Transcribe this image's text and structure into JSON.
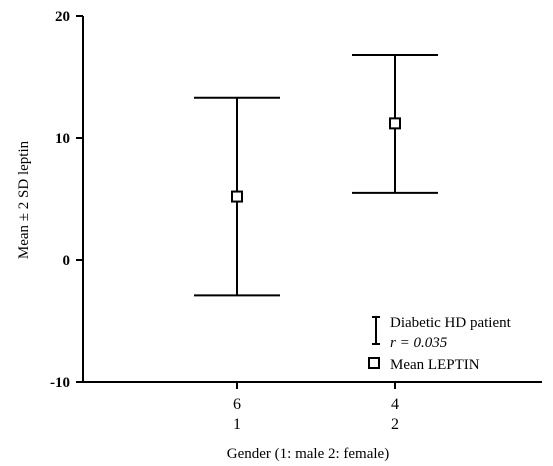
{
  "chart_data": {
    "type": "errorbar",
    "xlabel": "Gender (1: male 2: female)",
    "ylabel": "Mean ± 2 SD leptin",
    "ylim": [
      -10,
      20
    ],
    "yticks": [
      -10,
      0,
      10,
      20
    ],
    "categories": [
      {
        "top": "6",
        "bottom": "1"
      },
      {
        "top": "4",
        "bottom": "2"
      }
    ],
    "series": [
      {
        "name": "Mean LEPTIN",
        "values": [
          5.2,
          11.2
        ],
        "upper": [
          13.3,
          16.8
        ],
        "lower": [
          -2.9,
          5.5
        ]
      }
    ],
    "legend": {
      "position": "bottom-right",
      "items": [
        {
          "symbol": "error-bar",
          "lines": [
            "Diabetic HD patient",
            "r = 0.035"
          ]
        },
        {
          "symbol": "square",
          "lines": [
            "Mean LEPTIN"
          ]
        }
      ]
    }
  }
}
